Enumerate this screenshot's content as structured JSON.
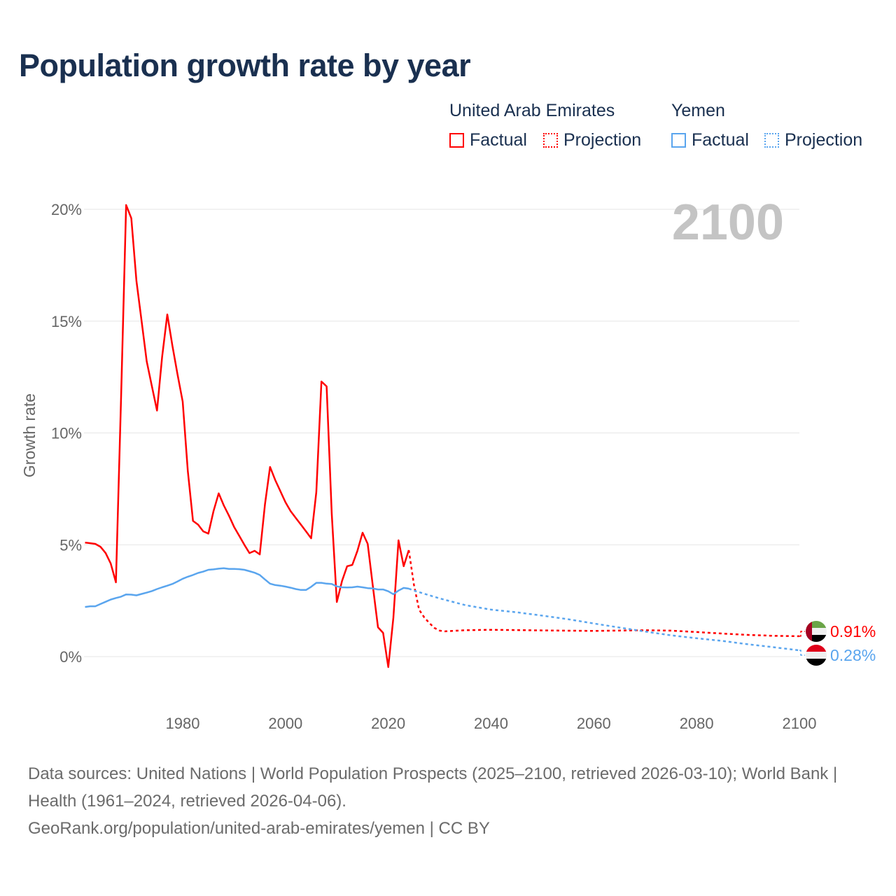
{
  "title": "Population growth rate by year",
  "legend": {
    "groups": [
      {
        "country": "United Arab Emirates",
        "factual": "Factual",
        "projection": "Projection",
        "color": "#ff0000"
      },
      {
        "country": "Yemen",
        "factual": "Factual",
        "projection": "Projection",
        "color": "#5aa5ee"
      }
    ]
  },
  "chart_data": {
    "type": "line",
    "title": "Population growth rate by year",
    "xlabel": "",
    "ylabel": "Growth rate",
    "xlim": [
      1961,
      2100
    ],
    "ylim": [
      -2,
      20
    ],
    "x_ticks": [
      "1980",
      "2000",
      "2020",
      "2040",
      "2060",
      "2080",
      "2100"
    ],
    "x_tick_values": [
      1980,
      2000,
      2020,
      2040,
      2060,
      2080,
      2100
    ],
    "y_ticks": [
      "0%",
      "5%",
      "10%",
      "15%",
      "20%"
    ],
    "y_tick_values": [
      0,
      5,
      10,
      15,
      20
    ],
    "grid": true,
    "year_watermark": "2100",
    "series": [
      {
        "name": "United Arab Emirates",
        "kind": "Factual",
        "color": "#ff0000",
        "style": "solid",
        "x": [
          1961,
          1962,
          1963,
          1964,
          1965,
          1966,
          1967,
          1968,
          1969,
          1970,
          1971,
          1972,
          1973,
          1974,
          1975,
          1976,
          1977,
          1978,
          1979,
          1980,
          1981,
          1982,
          1983,
          1984,
          1985,
          1986,
          1987,
          1988,
          1989,
          1990,
          1991,
          1992,
          1993,
          1994,
          1995,
          1996,
          1997,
          1998,
          1999,
          2000,
          2001,
          2002,
          2003,
          2004,
          2005,
          2006,
          2007,
          2008,
          2009,
          2010,
          2011,
          2012,
          2013,
          2014,
          2015,
          2016,
          2017,
          2018,
          2019,
          2020,
          2021,
          2022,
          2023,
          2024
        ],
        "y": [
          5.1,
          5.07,
          5.04,
          4.91,
          4.63,
          4.16,
          3.32,
          11.5,
          20.19,
          19.6,
          16.8,
          15.0,
          13.2,
          12.1,
          11.0,
          13.4,
          15.3,
          13.9,
          12.6,
          11.4,
          8.3,
          6.07,
          5.9,
          5.6,
          5.5,
          6.5,
          7.3,
          6.76,
          6.3,
          5.8,
          5.4,
          5.0,
          4.63,
          4.73,
          4.57,
          6.8,
          8.48,
          7.9,
          7.4,
          6.9,
          6.5,
          6.2,
          5.9,
          5.6,
          5.29,
          7.36,
          12.3,
          12.08,
          6.4,
          2.44,
          3.38,
          4.04,
          4.1,
          4.73,
          5.54,
          5.04,
          3.16,
          1.31,
          1.06,
          -0.47,
          1.75,
          5.2,
          4.04,
          4.76
        ]
      },
      {
        "name": "United Arab Emirates",
        "kind": "Projection",
        "color": "#ff0000",
        "style": "dotted",
        "x": [
          2024,
          2025,
          2026,
          2027,
          2028,
          2029,
          2030,
          2031,
          2035,
          2040,
          2050,
          2060,
          2070,
          2075,
          2080,
          2085,
          2090,
          2095,
          2100
        ],
        "y": [
          4.76,
          3.2,
          2.1,
          1.75,
          1.5,
          1.28,
          1.16,
          1.13,
          1.18,
          1.2,
          1.17,
          1.15,
          1.18,
          1.16,
          1.1,
          1.03,
          0.97,
          0.93,
          0.91
        ]
      },
      {
        "name": "Yemen",
        "kind": "Factual",
        "color": "#5aa5ee",
        "style": "solid",
        "x": [
          1961,
          1962,
          1963,
          1964,
          1965,
          1966,
          1967,
          1968,
          1969,
          1970,
          1971,
          1972,
          1973,
          1974,
          1975,
          1976,
          1977,
          1978,
          1979,
          1980,
          1981,
          1982,
          1983,
          1984,
          1985,
          1986,
          1987,
          1988,
          1989,
          1990,
          1991,
          1992,
          1993,
          1994,
          1995,
          1996,
          1997,
          1998,
          1999,
          2000,
          2001,
          2002,
          2003,
          2004,
          2005,
          2006,
          2007,
          2008,
          2009,
          2010,
          2011,
          2012,
          2013,
          2014,
          2015,
          2016,
          2017,
          2018,
          2019,
          2020,
          2021,
          2022,
          2023,
          2024
        ],
        "y": [
          2.22,
          2.25,
          2.25,
          2.35,
          2.45,
          2.55,
          2.62,
          2.68,
          2.78,
          2.77,
          2.74,
          2.8,
          2.86,
          2.93,
          3.02,
          3.1,
          3.17,
          3.25,
          3.36,
          3.48,
          3.57,
          3.65,
          3.74,
          3.8,
          3.88,
          3.9,
          3.93,
          3.95,
          3.92,
          3.92,
          3.91,
          3.88,
          3.82,
          3.75,
          3.65,
          3.45,
          3.26,
          3.2,
          3.17,
          3.13,
          3.08,
          3.02,
          2.98,
          2.98,
          3.12,
          3.3,
          3.3,
          3.26,
          3.25,
          3.14,
          3.1,
          3.09,
          3.1,
          3.13,
          3.1,
          3.06,
          3.05,
          3.0,
          3.0,
          2.92,
          2.79,
          2.95,
          3.07,
          3.04
        ]
      },
      {
        "name": "Yemen",
        "kind": "Projection",
        "color": "#5aa5ee",
        "style": "dotted",
        "x": [
          2024,
          2025,
          2030,
          2035,
          2040,
          2045,
          2050,
          2055,
          2060,
          2065,
          2070,
          2075,
          2080,
          2085,
          2090,
          2095,
          2100
        ],
        "y": [
          3.04,
          2.95,
          2.6,
          2.3,
          2.1,
          1.98,
          1.83,
          1.67,
          1.48,
          1.3,
          1.12,
          0.95,
          0.82,
          0.7,
          0.55,
          0.42,
          0.28
        ]
      }
    ],
    "end_labels": [
      {
        "country": "United Arab Emirates",
        "value": 0.91,
        "label": "0.91%",
        "color": "#ff0000"
      },
      {
        "country": "Yemen",
        "value": 0.28,
        "label": "0.28%",
        "color": "#5aa5ee"
      }
    ]
  },
  "footer": {
    "sources": "Data sources: United Nations | World Population Prospects (2025–2100, retrieved 2026-03-10); World Bank | Health (1961–2024, retrieved 2026-04-06).",
    "link": "GeoRank.org/population/united-arab-emirates/yemen | CC BY"
  }
}
